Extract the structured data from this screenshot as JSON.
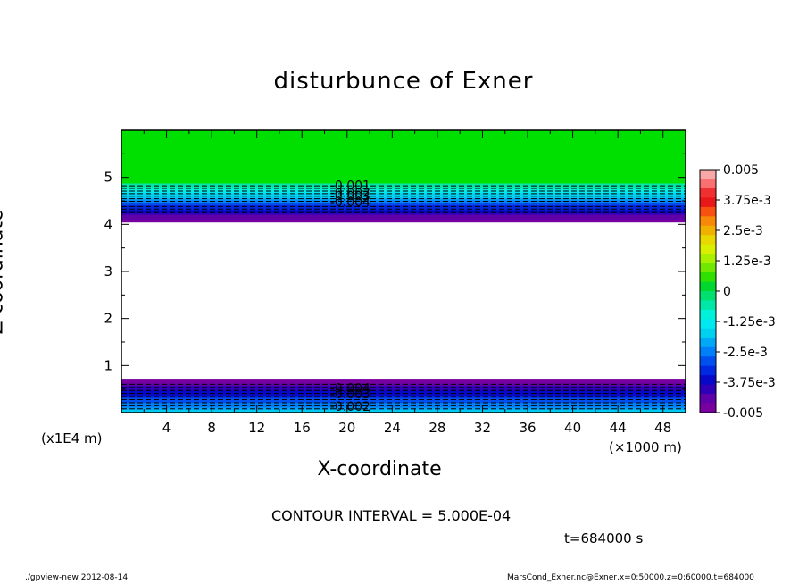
{
  "chart_data": {
    "type": "heatmap",
    "title": "disturbunce of Exner",
    "xlabel": "X-coordinate",
    "ylabel": "Z-coordinate",
    "x_unit": "(×1000 m)",
    "y_unit": "(x1E4 m)",
    "xlim": [
      0,
      50
    ],
    "ylim": [
      0,
      6
    ],
    "x_ticks": [
      4,
      8,
      12,
      16,
      20,
      24,
      28,
      32,
      36,
      40,
      44,
      48
    ],
    "y_ticks": [
      1,
      2,
      3,
      4,
      5
    ],
    "x_tick_labels": [
      "4",
      "8",
      "12",
      "16",
      "20",
      "24",
      "28",
      "32",
      "36",
      "40",
      "44",
      "48"
    ],
    "y_tick_labels": [
      "1",
      "2",
      "3",
      "4",
      "5"
    ],
    "colorbar": {
      "min": -0.005,
      "max": 0.005,
      "labels": [
        "0.005",
        "3.75e-3",
        "2.5e-3",
        "1.25e-3",
        "0",
        "-1.25e-3",
        "-2.5e-3",
        "-3.75e-3",
        "-0.005"
      ],
      "colors": [
        "#f8a8a8",
        "#f87070",
        "#f03030",
        "#e81818",
        "#f85010",
        "#f88808",
        "#f0b000",
        "#e8d800",
        "#d8f000",
        "#a8f000",
        "#70e800",
        "#30e000",
        "#00d830",
        "#00e070",
        "#00e8a8",
        "#00f0d8",
        "#00e8f0",
        "#00d0f0",
        "#00a8f8",
        "#0080f8",
        "#0050f0",
        "#0028e0",
        "#0808c8",
        "#3000b8",
        "#6000a8",
        "#7800a0"
      ]
    },
    "bands": [
      {
        "name": "upper",
        "z_range": [
          4.05,
          6.0
        ],
        "values_top_to_bottom": [
          0,
          -0.0005,
          -0.001,
          -0.0015,
          -0.002,
          -0.0025,
          -0.003,
          -0.0035,
          -0.004,
          -0.0045,
          -0.005
        ]
      },
      {
        "name": "lower",
        "z_range": [
          0.0,
          0.72
        ],
        "values_top_to_bottom": [
          -0.005,
          -0.0045,
          -0.004,
          -0.0035,
          -0.003,
          -0.0025,
          -0.002
        ]
      }
    ],
    "contour_labels": [
      {
        "text": "-0.001",
        "x": 18.5,
        "z": 4.83
      },
      {
        "text": "-0.002",
        "x": 18.5,
        "z": 4.68
      },
      {
        "text": "-0.003",
        "x": 18.5,
        "z": 4.6
      },
      {
        "text": "-0.004",
        "x": 18.5,
        "z": 4.48
      },
      {
        "text": "-0.004",
        "x": 18.5,
        "z": 0.52
      },
      {
        "text": "-0.003",
        "x": 18.5,
        "z": 0.4
      },
      {
        "text": "-0.002",
        "x": 18.5,
        "z": 0.13
      }
    ],
    "contour_interval": "CONTOUR INTERVAL = 5.000E-04",
    "time": "t=684000 s"
  },
  "footer": {
    "left": "./gpview-new   2012-08-14",
    "right": "MarsCond_Exner.nc@Exner,x=0:50000,z=0:60000,t=684000"
  }
}
